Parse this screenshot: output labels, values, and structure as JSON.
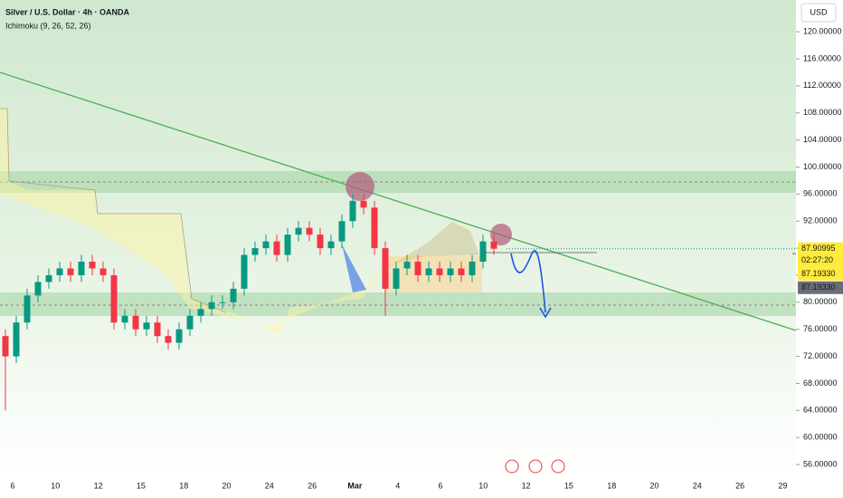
{
  "chart_data": {
    "type": "candlestick",
    "title": "Silver / U.S. Dollar · 4h · OANDA",
    "indicator": "Ichimoku (9, 26, 52, 26)",
    "currency": "USD",
    "open": [
      75,
      72,
      77,
      81,
      83,
      84,
      85,
      84,
      86,
      85,
      84,
      77,
      78,
      76,
      77,
      75,
      74,
      76,
      78,
      79,
      80,
      80,
      82,
      87,
      88,
      89,
      87,
      90,
      91,
      90,
      88,
      89,
      92,
      95,
      94,
      88,
      82,
      85,
      86,
      84,
      85,
      84,
      85,
      84,
      86,
      89
    ],
    "high": [
      76,
      78,
      82,
      84,
      85,
      86,
      86,
      87,
      87,
      86,
      85,
      79,
      79,
      78,
      78,
      76,
      77,
      79,
      80,
      81,
      81,
      83,
      88,
      89,
      90,
      90,
      91,
      92,
      92,
      91,
      90,
      93,
      96,
      96,
      95,
      89,
      86,
      87,
      87,
      86,
      86,
      86,
      86,
      87,
      90,
      90
    ],
    "low": [
      64,
      71,
      76,
      80,
      82,
      83,
      83,
      83,
      84,
      83,
      76,
      76,
      75,
      75,
      74,
      73,
      73,
      75,
      77,
      78,
      79,
      79,
      81,
      86,
      87,
      86,
      86,
      89,
      89,
      87,
      87,
      88,
      91,
      93,
      87,
      78,
      81,
      84,
      83,
      83,
      83,
      83,
      83,
      83,
      85,
      87
    ],
    "close": [
      72,
      77,
      81,
      83,
      84,
      85,
      84,
      86,
      85,
      84,
      77,
      78,
      76,
      77,
      75,
      74,
      76,
      78,
      79,
      80,
      80,
      82,
      87,
      88,
      89,
      87,
      90,
      91,
      90,
      88,
      89,
      92,
      95,
      94,
      88,
      82,
      85,
      86,
      84,
      85,
      84,
      85,
      84,
      86,
      89,
      87.90995
    ],
    "up_color": "#089981",
    "down_color": "#f23645",
    "ylim": [
      54.4,
      124.7
    ],
    "yticks": [
      {
        "value": 56,
        "label": "56.00000"
      },
      {
        "value": 60,
        "label": "60.00000"
      },
      {
        "value": 64,
        "label": "64.00000"
      },
      {
        "value": 68,
        "label": "68.00000"
      },
      {
        "value": 72,
        "label": "72.00000"
      },
      {
        "value": 76,
        "label": "76.00000"
      },
      {
        "value": 80,
        "label": "80.00000"
      },
      {
        "value": 84,
        "label": "84.00000"
      },
      {
        "value": 88,
        "label": "88.00000"
      },
      {
        "value": 92,
        "label": "92.00000"
      },
      {
        "value": 96,
        "label": "96.00000"
      },
      {
        "value": 100,
        "label": "100.00000"
      },
      {
        "value": 104,
        "label": "104.00000"
      },
      {
        "value": 108,
        "label": "108.00000"
      },
      {
        "value": 112,
        "label": "112.00000"
      },
      {
        "value": 116,
        "label": "116.00000"
      },
      {
        "value": 120,
        "label": "120.00000"
      }
    ],
    "x_labels": [
      "6",
      "10",
      "12",
      "15",
      "18",
      "20",
      "24",
      "26",
      "Mar",
      "4",
      "6",
      "10",
      "12",
      "15",
      "18",
      "20",
      "24",
      "26",
      "29"
    ],
    "last_price": {
      "value": 87.90995,
      "label": "87.90995"
    },
    "countdown": "02:27:20",
    "price_lines": [
      {
        "value": 87.1933,
        "label": "87.19330",
        "color": "#ffeb3b"
      },
      {
        "value": 87.1933,
        "label": "87.19330",
        "color": "#6a6d78"
      }
    ]
  }
}
